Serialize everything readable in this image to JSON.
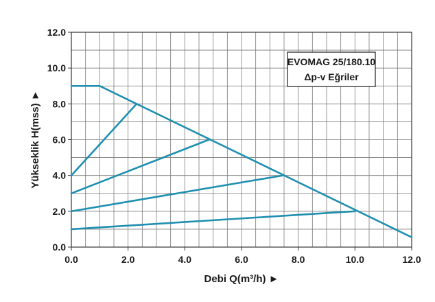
{
  "chart_data": {
    "type": "line",
    "title": "EVOMAG 25/180.10",
    "subtitle": "Δp-v Eğriler",
    "xlabel": "Debi Q(m³/h) ►",
    "ylabel": "Yükseklik H(mss) ►",
    "xlim": [
      0,
      12
    ],
    "ylim": [
      0,
      12
    ],
    "grid": true,
    "legend": "top-right",
    "line_color": "#1f8fb0",
    "xticks": [
      "0.0",
      "2.0",
      "4.0",
      "6.0",
      "8.0",
      "10.0",
      "12.0"
    ],
    "yticks": [
      "0.0",
      "2.0",
      "4.0",
      "6.0",
      "8.0",
      "10.0",
      "12.0"
    ],
    "series": [
      {
        "x": [
          0,
          1,
          12
        ],
        "y": [
          9,
          9,
          0.55
        ]
      },
      {
        "x": [
          0,
          2.3
        ],
        "y": [
          4,
          8
        ]
      },
      {
        "x": [
          0,
          4.85
        ],
        "y": [
          3,
          6
        ]
      },
      {
        "x": [
          0,
          7.45
        ],
        "y": [
          2,
          4
        ]
      },
      {
        "x": [
          0,
          10
        ],
        "y": [
          1,
          2
        ]
      }
    ]
  }
}
